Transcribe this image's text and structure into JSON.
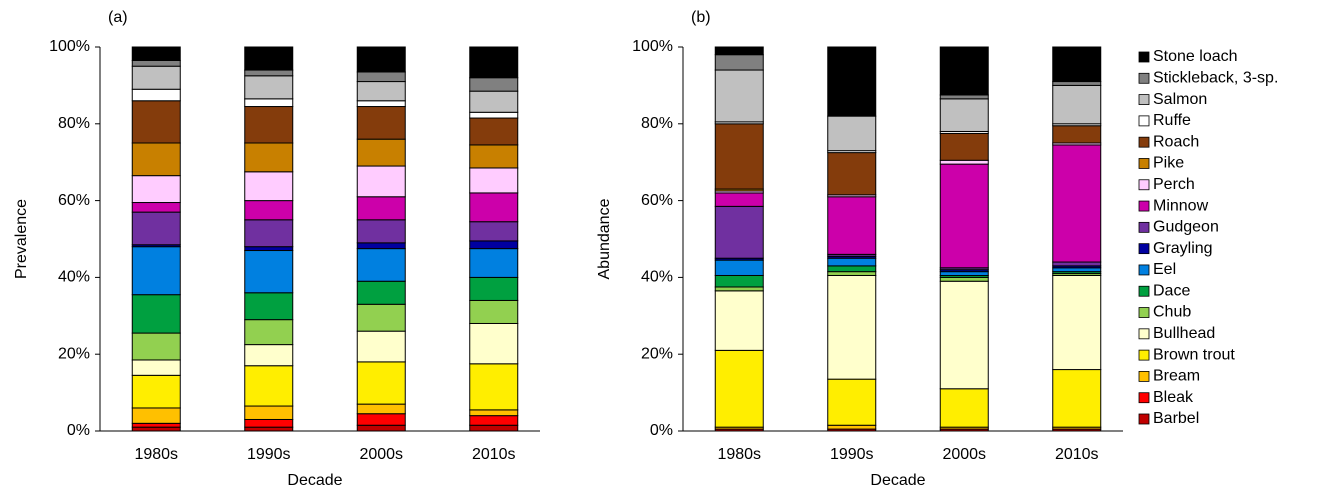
{
  "chart_data": [
    {
      "type": "bar",
      "stacked": true,
      "panel_label": "(a)",
      "y_label": "Prevalence",
      "x_label": "Decade",
      "categories": [
        "1980s",
        "1990s",
        "2000s",
        "2010s"
      ],
      "ylim": [
        0,
        100
      ],
      "yticks": [
        {
          "value": 0,
          "label": "0%"
        },
        {
          "value": 20,
          "label": "20%"
        },
        {
          "value": 40,
          "label": "40%"
        },
        {
          "value": 60,
          "label": "60%"
        },
        {
          "value": 80,
          "label": "80%"
        },
        {
          "value": 100,
          "label": "100%"
        }
      ],
      "series": [
        {
          "color": "#c00000",
          "values": [
            1,
            1,
            1.5,
            1.5
          ]
        },
        {
          "color": "#ff0000",
          "values": [
            1,
            2,
            3,
            2.5
          ]
        },
        {
          "color": "#ffc000",
          "values": [
            4,
            3.5,
            2.5,
            1.5
          ]
        },
        {
          "color": "#ffee00",
          "values": [
            8.5,
            10.5,
            11,
            12
          ]
        },
        {
          "color": "#ffffcc",
          "values": [
            4,
            5.5,
            8,
            10.5
          ]
        },
        {
          "color": "#92d050",
          "values": [
            7,
            6.5,
            7,
            6
          ]
        },
        {
          "color": "#00a040",
          "values": [
            10,
            7,
            6,
            6
          ]
        },
        {
          "color": "#0080e0",
          "values": [
            12.5,
            11,
            8.5,
            7.5
          ]
        },
        {
          "color": "#0000a0",
          "values": [
            0.5,
            1,
            1.5,
            2
          ]
        },
        {
          "color": "#7030a0",
          "values": [
            8.5,
            7,
            6,
            5
          ]
        },
        {
          "color": "#cc00aa",
          "values": [
            2.5,
            5,
            6,
            7.5
          ]
        },
        {
          "color": "#ffccff",
          "values": [
            7,
            7.5,
            8,
            6.5
          ]
        },
        {
          "color": "#c88000",
          "values": [
            8.5,
            7.5,
            7,
            6
          ]
        },
        {
          "color": "#843c0c",
          "values": [
            11,
            9.5,
            8.5,
            7
          ]
        },
        {
          "color": "#ffffff",
          "values": [
            3,
            2,
            1.5,
            1.5
          ]
        },
        {
          "color": "#c0c0c0",
          "values": [
            6,
            6,
            5,
            5.5
          ]
        },
        {
          "color": "#808080",
          "values": [
            1.5,
            1.5,
            2.5,
            3.5
          ]
        },
        {
          "color": "#000000",
          "values": [
            3.5,
            6,
            6.5,
            8
          ]
        }
      ]
    },
    {
      "type": "bar",
      "stacked": true,
      "panel_label": "(b)",
      "y_label": "Abundance",
      "x_label": "Decade",
      "categories": [
        "1980s",
        "1990s",
        "2000s",
        "2010s"
      ],
      "ylim": [
        0,
        100
      ],
      "yticks": [
        {
          "value": 0,
          "label": "0%"
        },
        {
          "value": 20,
          "label": "20%"
        },
        {
          "value": 40,
          "label": "40%"
        },
        {
          "value": 60,
          "label": "60%"
        },
        {
          "value": 80,
          "label": "80%"
        },
        {
          "value": 100,
          "label": "100%"
        }
      ],
      "legend": "right",
      "series": [
        {
          "name": "Barbel",
          "color": "#c00000",
          "values": [
            0.5,
            0.5,
            0.5,
            0.5
          ]
        },
        {
          "name": "Bleak",
          "color": "#ff0000",
          "values": [
            0,
            0,
            0,
            0
          ]
        },
        {
          "name": "Bream",
          "color": "#ffc000",
          "values": [
            0.5,
            1,
            0.5,
            0.5
          ]
        },
        {
          "name": "Brown trout",
          "color": "#ffee00",
          "values": [
            20,
            12,
            10,
            15
          ]
        },
        {
          "name": "Bullhead",
          "color": "#ffffcc",
          "values": [
            15.5,
            27,
            28,
            24.5
          ]
        },
        {
          "name": "Chub",
          "color": "#92d050",
          "values": [
            1,
            1,
            1,
            0.5
          ]
        },
        {
          "name": "Dace",
          "color": "#00a040",
          "values": [
            3,
            1.5,
            0.5,
            0.5
          ]
        },
        {
          "name": "Eel",
          "color": "#0080e0",
          "values": [
            4,
            2,
            1,
            1
          ]
        },
        {
          "name": "Grayling",
          "color": "#0000a0",
          "values": [
            0.5,
            0.5,
            0.5,
            0.5
          ]
        },
        {
          "name": "Gudgeon",
          "color": "#7030a0",
          "values": [
            13.5,
            0.5,
            0.5,
            1
          ]
        },
        {
          "name": "Minnow",
          "color": "#cc00aa",
          "values": [
            3.5,
            15,
            27,
            30.5
          ]
        },
        {
          "name": "Perch",
          "color": "#ffccff",
          "values": [
            0.5,
            0.5,
            1,
            0.5
          ]
        },
        {
          "name": "Pike",
          "color": "#c88000",
          "values": [
            0.5,
            0,
            0,
            0
          ]
        },
        {
          "name": "Roach",
          "color": "#843c0c",
          "values": [
            17,
            11,
            7,
            4.5
          ]
        },
        {
          "name": "Ruffe",
          "color": "#ffffff",
          "values": [
            0.5,
            0.5,
            0.5,
            0.5
          ]
        },
        {
          "name": "Salmon",
          "color": "#c0c0c0",
          "values": [
            13.5,
            9,
            8.5,
            10
          ]
        },
        {
          "name": "Stickleback, 3-sp.",
          "color": "#808080",
          "values": [
            4,
            0,
            1,
            1
          ]
        },
        {
          "name": "Stone loach",
          "color": "#000000",
          "values": [
            2,
            18,
            12.5,
            9
          ]
        }
      ]
    }
  ]
}
